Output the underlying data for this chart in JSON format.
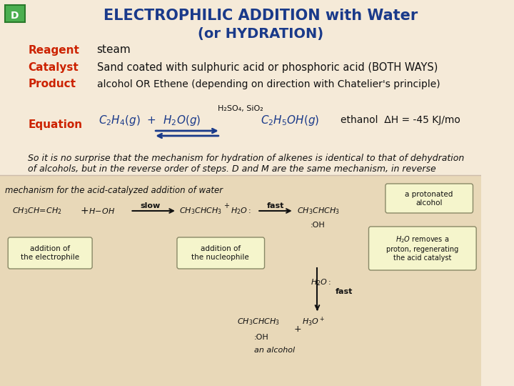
{
  "bg_color": "#f5ead8",
  "title_line1": "ELECTROPHILIC ADDITION with Water",
  "title_line2": "(or HYDRATION)",
  "title_color": "#1a3a8a",
  "label_color": "#cc2200",
  "text_color": "#1a3a8a",
  "black_text": "#111111",
  "d_box_color": "#2a7a2a",
  "d_box_bg": "#4caf50",
  "label_reagent": "Reagent",
  "value_reagent": "steam",
  "label_catalyst": "Catalyst",
  "value_catalyst": "Sand coated with sulphuric acid or phosphoric acid (BOTH WAYS)",
  "label_product": "Product",
  "value_product": "alcohol OR Ethene (depending on direction with Chatelier's principle)",
  "label_equation": "Equation",
  "catalyst_above": "H₂SO₄, SiO₂",
  "eq_left": "C₂H₄(g)  +  H₂O(g)",
  "eq_right": "C₂H₅OH(g)",
  "eq_extra": "ethanol  ΔH = -45 KJ/mo",
  "italic_text": "So it is no surprise that the mechanism for hydration of alkenes is identical to that of dehydration\nof alcohols, but in the reverse order of steps. D and M are the same mechanism, in reverse",
  "bottom_image_section": true,
  "mechanism_label": "mechanism for the acid-catalyzed addition of water"
}
